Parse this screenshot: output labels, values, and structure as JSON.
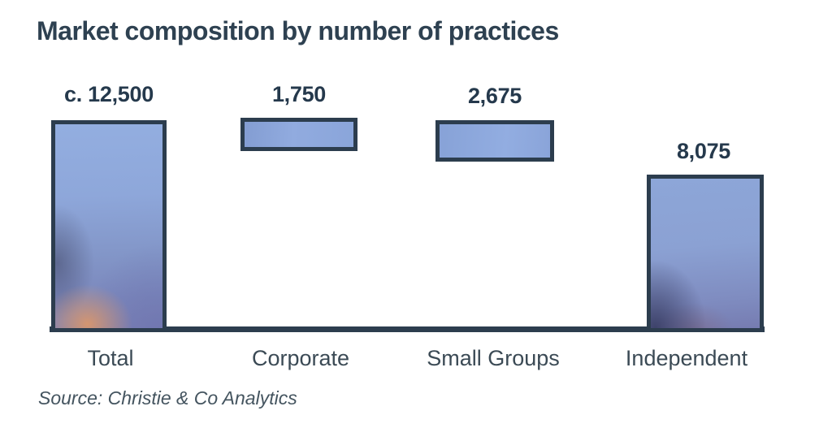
{
  "title": "Market composition by number of practices",
  "source": "Source: Christie & Co Analytics",
  "chart_data": {
    "type": "bar",
    "title": "Market composition by number of practices",
    "categories": [
      "Total",
      "Corporate",
      "Small Groups",
      "Independent"
    ],
    "values": [
      12500,
      1750,
      2675,
      8075
    ],
    "value_labels": [
      "c. 12,500",
      "1,750",
      "2,675",
      "8,075"
    ],
    "orientation": "vertical",
    "layout": "floating-segment bars: Total and Independent sit on the baseline, Corporate and Small Groups float near the top; segment values sum to the total",
    "grid": false,
    "legend": false,
    "ylim": [
      0,
      12500
    ],
    "source": "Source: Christie & Co Analytics"
  },
  "colors": {
    "title_text": "#2e4151",
    "value_text": "#25394c",
    "category_text": "#3b4a55",
    "source_text": "#44545f",
    "bar_border": "#2c3d4e",
    "axis": "#2c3d4e",
    "bar_fill_light": "#91abdf",
    "bar_fill_deep": "#767cb1",
    "bar_glow_orange": "#e49964",
    "background": "#ffffff"
  }
}
